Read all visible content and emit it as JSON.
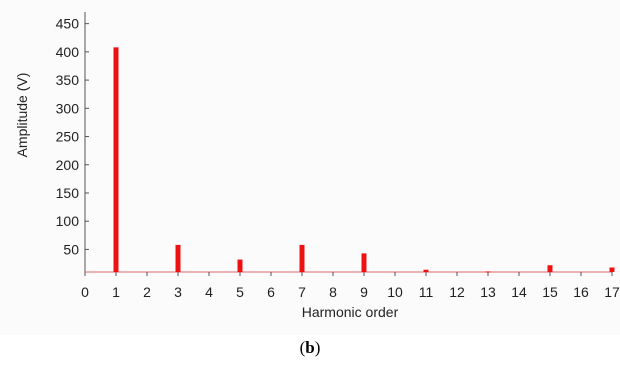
{
  "chart_data": {
    "type": "bar",
    "title": "",
    "xlabel": "Harmonic order",
    "ylabel": "Amplitude (V)",
    "xlim": [
      0,
      17
    ],
    "ylim": [
      10,
      460
    ],
    "x_ticks": [
      "0",
      "1",
      "2",
      "3",
      "4",
      "5",
      "6",
      "7",
      "8",
      "9",
      "10",
      "11",
      "12",
      "13",
      "14",
      "15",
      "16",
      "17"
    ],
    "y_ticks": [
      "50",
      "100",
      "150",
      "200",
      "250",
      "300",
      "350",
      "400",
      "450"
    ],
    "x": [
      1,
      3,
      5,
      7,
      9,
      11,
      13,
      15,
      17
    ],
    "values": [
      408,
      58,
      32,
      58,
      43,
      14,
      11,
      22,
      18
    ],
    "bar_color": "#ee1111",
    "baseline_color": "#d86a6a",
    "grid": false,
    "legend": "none"
  },
  "caption": {
    "open": "(",
    "label": "b",
    "close": ")"
  }
}
